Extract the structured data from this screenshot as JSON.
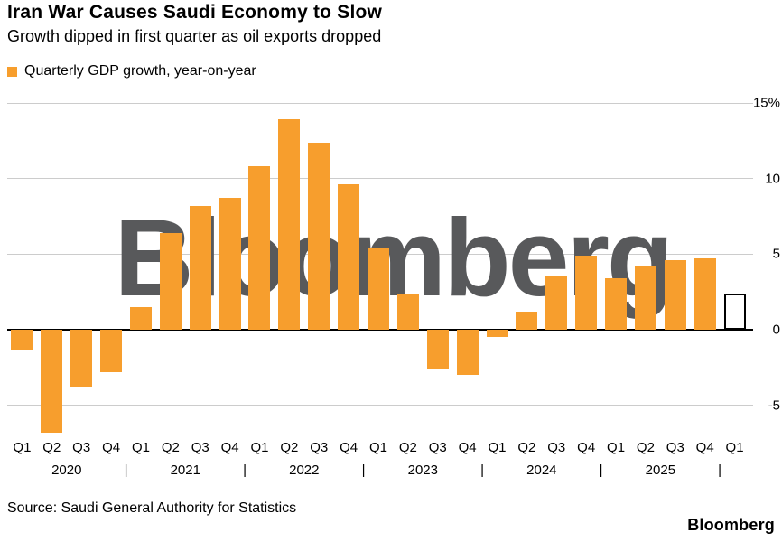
{
  "header": {
    "title": "Iran War Causes Saudi Economy to Slow",
    "subtitle": "Growth dipped in first quarter as oil exports dropped"
  },
  "legend": {
    "label": "Quarterly GDP growth, year-on-year",
    "swatch_color": "#F79E2D"
  },
  "watermark": {
    "text": "Bloomberg"
  },
  "footer": {
    "source": "Source: Saudi General Authority for Statistics",
    "logo": "Bloomberg"
  },
  "chart_data": {
    "type": "bar",
    "title": "Iran War Causes Saudi Economy to Slow",
    "subtitle": "Growth dipped in first quarter as oil exports dropped",
    "series_label": "Quarterly GDP growth, year-on-year",
    "unit": "%",
    "quarters": [
      "Q1",
      "Q2",
      "Q3",
      "Q4",
      "Q1",
      "Q2",
      "Q3",
      "Q4",
      "Q1",
      "Q2",
      "Q3",
      "Q4",
      "Q1",
      "Q2",
      "Q3",
      "Q4",
      "Q1",
      "Q2",
      "Q3",
      "Q4",
      "Q1",
      "Q2",
      "Q3",
      "Q4",
      "Q1"
    ],
    "values": [
      -1.4,
      -6.8,
      -3.8,
      -2.8,
      1.5,
      6.4,
      8.2,
      8.7,
      10.8,
      13.9,
      12.4,
      9.6,
      5.4,
      2.4,
      -2.6,
      -3.0,
      -0.5,
      1.2,
      3.5,
      4.9,
      3.4,
      4.2,
      4.6,
      4.7,
      2.4
    ],
    "year_groups": [
      {
        "label": "2020",
        "count": 4,
        "separator": "|"
      },
      {
        "label": "2021",
        "count": 4,
        "separator": "|"
      },
      {
        "label": "2022",
        "count": 4,
        "separator": "|"
      },
      {
        "label": "2023",
        "count": 4,
        "separator": "|"
      },
      {
        "label": "2024",
        "count": 4,
        "separator": "|"
      },
      {
        "label": "2025",
        "count": 4,
        "separator": "|"
      },
      {
        "label": "",
        "count": 1,
        "separator": ""
      }
    ],
    "yticks": [
      {
        "v": 15,
        "label": "15%"
      },
      {
        "v": 10,
        "label": "10"
      },
      {
        "v": 5,
        "label": "5"
      },
      {
        "v": 0,
        "label": "0"
      },
      {
        "v": -5,
        "label": "-5"
      }
    ],
    "ylim": [
      -7.0,
      15.6
    ],
    "grid": true,
    "legend_position": "top-left",
    "bar_color": "#F79E2D",
    "highlight_last_bar": {
      "fill": "#FFFFFF",
      "border": "#000000"
    }
  }
}
